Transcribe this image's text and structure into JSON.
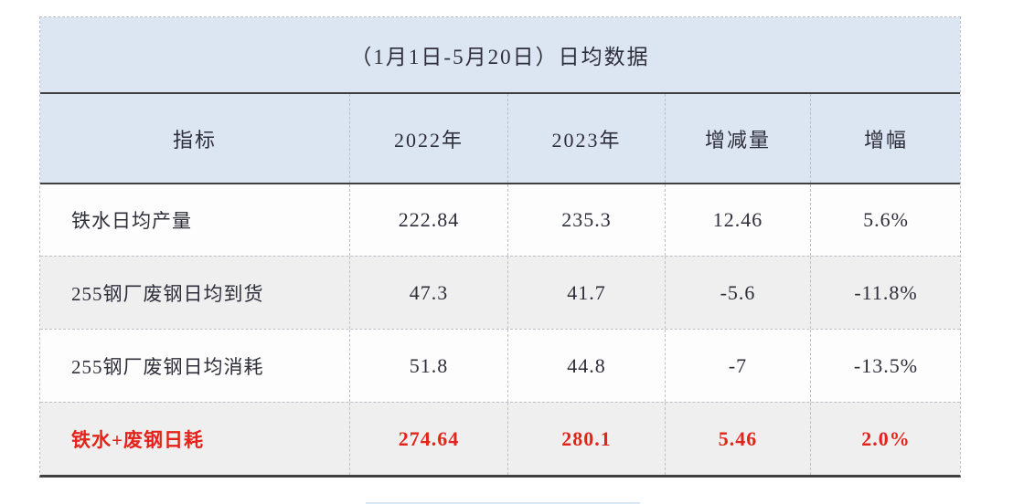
{
  "table": {
    "title": "（1月1日-5月20日）日均数据",
    "columns": [
      "指标",
      "2022年",
      "2023年",
      "增减量",
      "增幅"
    ],
    "rows": [
      {
        "label": "铁水日均产量",
        "values": [
          "222.84",
          "235.3",
          "12.46",
          "5.6%"
        ],
        "highlight": false
      },
      {
        "label": "255钢厂废钢日均到货",
        "values": [
          "47.3",
          "41.7",
          "-5.6",
          "-11.8%"
        ],
        "highlight": false
      },
      {
        "label": "255钢厂废钢日均消耗",
        "values": [
          "51.8",
          "44.8",
          "-7",
          "-13.5%"
        ],
        "highlight": false
      },
      {
        "label": "铁水+废钢日耗",
        "values": [
          "274.64",
          "280.1",
          "5.46",
          "2.0%"
        ],
        "highlight": true
      }
    ],
    "colors": {
      "page_bg": "#ffffff",
      "header_bg": "#dce6f2",
      "row_bg": "#fdfdfd",
      "row_alt_bg": "#efefef",
      "text": "#2e2e3a",
      "highlight_text": "#e4231b",
      "heavy_border": "#404040",
      "light_border": "#bcc0c6",
      "hint_bar": "#d9e8f7"
    }
  },
  "chart_data": {
    "type": "table",
    "title": "（1月1日-5月20日）日均数据",
    "columns": [
      "指标",
      "2022年",
      "2023年",
      "增减量",
      "增幅"
    ],
    "rows": [
      [
        "铁水日均产量",
        222.84,
        235.3,
        12.46,
        "5.6%"
      ],
      [
        "255钢厂废钢日均到货",
        47.3,
        41.7,
        -5.6,
        "-11.8%"
      ],
      [
        "255钢厂废钢日均消耗",
        51.8,
        44.8,
        -7,
        "-13.5%"
      ],
      [
        "铁水+废钢日耗",
        274.64,
        280.1,
        5.46,
        "2.0%"
      ]
    ]
  }
}
